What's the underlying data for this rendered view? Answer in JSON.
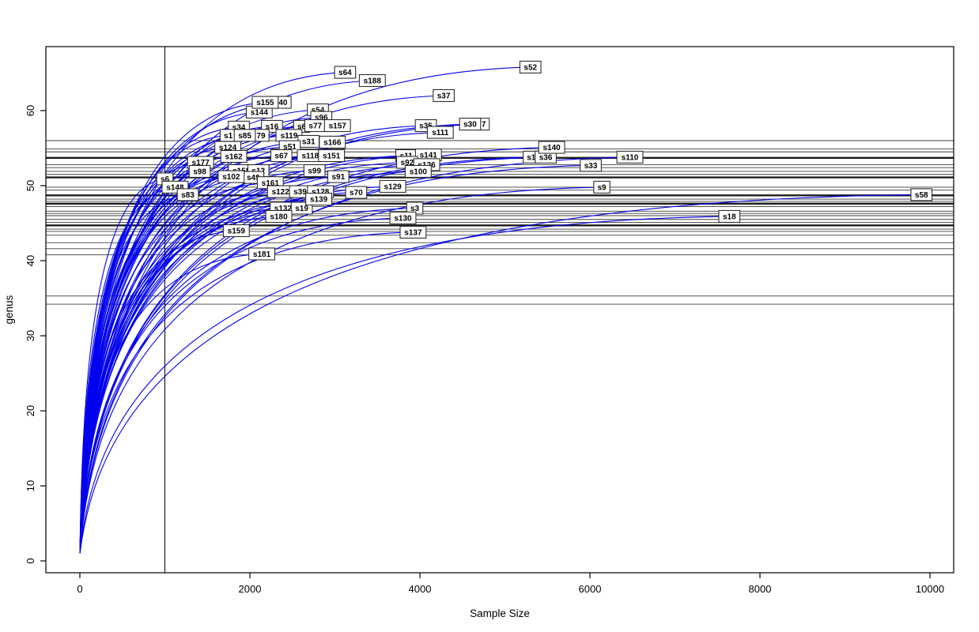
{
  "chart_data": {
    "type": "line",
    "title": "",
    "xlabel": "Sample Size",
    "ylabel": "genus",
    "x_ticks": [
      0,
      2000,
      4000,
      6000,
      8000,
      10000
    ],
    "y_ticks": [
      0,
      10,
      20,
      30,
      40,
      50,
      60
    ],
    "xlim": [
      -400,
      10280
    ],
    "ylim": [
      -1.6,
      68.5
    ],
    "grid": false,
    "legend": "none",
    "vline_sample_size": 1000,
    "curve_start": {
      "x": 1,
      "y": 1
    },
    "hlines_rarefied_richness": [
      {
        "value": 56.0,
        "bold": false
      },
      {
        "value": 54.9,
        "bold": false
      },
      {
        "value": 54.5,
        "bold": false
      },
      {
        "value": 53.7,
        "bold": true
      },
      {
        "value": 52.8,
        "bold": false
      },
      {
        "value": 52.4,
        "bold": false
      },
      {
        "value": 51.9,
        "bold": false
      },
      {
        "value": 51.5,
        "bold": false
      },
      {
        "value": 51.1,
        "bold": true
      },
      {
        "value": 49.8,
        "bold": false
      },
      {
        "value": 49.4,
        "bold": false
      },
      {
        "value": 48.7,
        "bold": true
      },
      {
        "value": 48.2,
        "bold": false
      },
      {
        "value": 47.9,
        "bold": false
      },
      {
        "value": 47.6,
        "bold": true
      },
      {
        "value": 47.2,
        "bold": false
      },
      {
        "value": 46.6,
        "bold": false
      },
      {
        "value": 46.3,
        "bold": false
      },
      {
        "value": 46.0,
        "bold": false
      },
      {
        "value": 45.5,
        "bold": false
      },
      {
        "value": 45.1,
        "bold": false
      },
      {
        "value": 44.7,
        "bold": true
      },
      {
        "value": 44.2,
        "bold": false
      },
      {
        "value": 43.9,
        "bold": false
      },
      {
        "value": 43.4,
        "bold": false
      },
      {
        "value": 42.4,
        "bold": false
      },
      {
        "value": 41.6,
        "bold": false
      },
      {
        "value": 40.8,
        "bold": false
      },
      {
        "value": 35.3,
        "bold": false
      },
      {
        "value": 34.2,
        "bold": false
      }
    ],
    "samples": [
      {
        "label": "s64",
        "n": 3120,
        "genus": 65.1
      },
      {
        "label": "s188",
        "n": 3440,
        "genus": 64.0
      },
      {
        "label": "s52",
        "n": 5300,
        "genus": 65.8
      },
      {
        "label": "s37",
        "n": 4280,
        "genus": 62.0
      },
      {
        "label": "40",
        "n": 2390,
        "genus": 61.1,
        "clipped": true
      },
      {
        "label": "s144",
        "n": 2110,
        "genus": 59.8
      },
      {
        "label": "s155",
        "n": 2180,
        "genus": 61.1
      },
      {
        "label": "s54",
        "n": 2800,
        "genus": 60.1
      },
      {
        "label": "s96",
        "n": 2840,
        "genus": 59.1
      },
      {
        "label": "s34",
        "n": 1870,
        "genus": 57.8
      },
      {
        "label": "s16",
        "n": 2260,
        "genus": 57.9
      },
      {
        "label": "s6",
        "n": 2610,
        "genus": 57.9,
        "clipped": true
      },
      {
        "label": "s77",
        "n": 2770,
        "genus": 58.0
      },
      {
        "label": "s157",
        "n": 3030,
        "genus": 58.0
      },
      {
        "label": "s35",
        "n": 4070,
        "genus": 58.0
      },
      {
        "label": "7",
        "n": 4750,
        "genus": 58.2,
        "clipped": true
      },
      {
        "label": "s30",
        "n": 4590,
        "genus": 58.2
      },
      {
        "label": "s111",
        "n": 4240,
        "genus": 57.1
      },
      {
        "label": "s1",
        "n": 1745,
        "genus": 56.7,
        "clipped": true
      },
      {
        "label": "79",
        "n": 2130,
        "genus": 56.7,
        "clipped": true
      },
      {
        "label": "s85",
        "n": 1940,
        "genus": 56.7
      },
      {
        "label": "s119",
        "n": 2460,
        "genus": 56.7
      },
      {
        "label": "s124",
        "n": 1740,
        "genus": 55.1
      },
      {
        "label": "s31",
        "n": 2690,
        "genus": 55.9
      },
      {
        "label": "s51",
        "n": 2470,
        "genus": 55.2
      },
      {
        "label": "s166",
        "n": 2970,
        "genus": 55.8
      },
      {
        "label": "s162",
        "n": 1810,
        "genus": 53.9
      },
      {
        "label": "s67",
        "n": 2370,
        "genus": 54.0
      },
      {
        "label": "s118",
        "n": 2710,
        "genus": 54.0
      },
      {
        "label": "s151",
        "n": 2960,
        "genus": 54.0
      },
      {
        "label": "s11",
        "n": 3840,
        "genus": 54.0
      },
      {
        "label": "s141",
        "n": 4100,
        "genus": 54.1
      },
      {
        "label": "s92",
        "n": 3850,
        "genus": 53.1
      },
      {
        "label": "s126",
        "n": 4080,
        "genus": 52.8
      },
      {
        "label": "s100",
        "n": 3980,
        "genus": 51.9
      },
      {
        "label": "s1",
        "n": 5310,
        "genus": 53.8,
        "clipped": true
      },
      {
        "label": "s36",
        "n": 5480,
        "genus": 53.8
      },
      {
        "label": "s140",
        "n": 5550,
        "genus": 55.1
      },
      {
        "label": "s110",
        "n": 6470,
        "genus": 53.8
      },
      {
        "label": "s33",
        "n": 6010,
        "genus": 52.7
      },
      {
        "label": "s177",
        "n": 1420,
        "genus": 53.1
      },
      {
        "label": "s98",
        "n": 1410,
        "genus": 51.9
      },
      {
        "label": "s158",
        "n": 1900,
        "genus": 52.0
      },
      {
        "label": "s12",
        "n": 2100,
        "genus": 52.0
      },
      {
        "label": "s99",
        "n": 2760,
        "genus": 52.0
      },
      {
        "label": "s49",
        "n": 2040,
        "genus": 51.1,
        "clipped": true
      },
      {
        "label": "s102",
        "n": 1780,
        "genus": 51.2
      },
      {
        "label": "s6",
        "n": 1000,
        "genus": 50.9
      },
      {
        "label": "s91",
        "n": 3040,
        "genus": 51.2
      },
      {
        "label": "s161",
        "n": 2240,
        "genus": 50.4
      },
      {
        "label": "s148",
        "n": 1120,
        "genus": 49.8
      },
      {
        "label": "s9",
        "n": 6140,
        "genus": 49.8
      },
      {
        "label": "s83",
        "n": 1270,
        "genus": 48.8
      },
      {
        "label": "s129",
        "n": 3680,
        "genus": 49.9
      },
      {
        "label": "s70",
        "n": 3250,
        "genus": 49.1
      },
      {
        "label": "s122",
        "n": 2360,
        "genus": 49.2
      },
      {
        "label": "s39",
        "n": 2590,
        "genus": 49.2
      },
      {
        "label": "s128",
        "n": 2830,
        "genus": 49.2
      },
      {
        "label": "s132",
        "n": 2390,
        "genus": 47.0
      },
      {
        "label": "s19",
        "n": 2610,
        "genus": 47.0
      },
      {
        "label": "s139",
        "n": 2810,
        "genus": 48.2
      },
      {
        "label": "s58",
        "n": 9900,
        "genus": 48.8
      },
      {
        "label": "s3",
        "n": 3940,
        "genus": 47.0
      },
      {
        "label": "s180",
        "n": 2340,
        "genus": 45.9
      },
      {
        "label": "s130",
        "n": 3800,
        "genus": 45.7
      },
      {
        "label": "s18",
        "n": 7640,
        "genus": 45.9
      },
      {
        "label": "s159",
        "n": 1840,
        "genus": 44.0
      },
      {
        "label": "s137",
        "n": 3920,
        "genus": 43.8
      },
      {
        "label": "s181",
        "n": 2140,
        "genus": 40.9
      }
    ],
    "colors": {
      "curve": "#0000ee",
      "hline": "#3d3d3d",
      "hline_bold": "#1c1c1c",
      "axis": "#000000",
      "vline": "#000000",
      "label_box_fill": "#ffffff",
      "label_box_border": "#2e2e2e",
      "text": "#000000"
    }
  }
}
